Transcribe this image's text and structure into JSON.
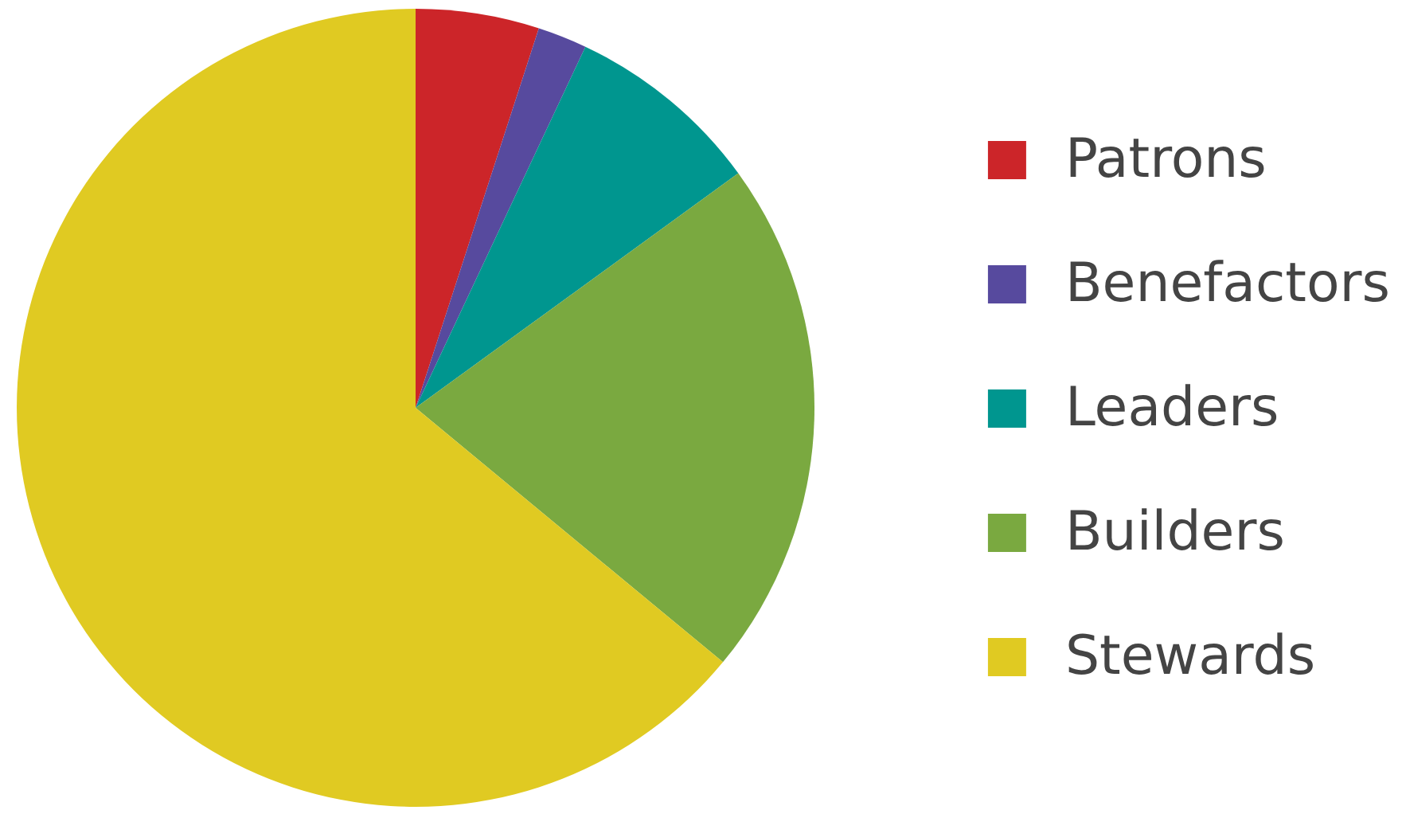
{
  "chart_data": {
    "type": "pie",
    "categories": [
      "Patrons",
      "Benefactors",
      "Leaders",
      "Builders",
      "Stewards"
    ],
    "values": [
      5,
      2,
      8,
      21,
      64
    ],
    "colors": [
      "#cc2529",
      "#574a9e",
      "#00968f",
      "#7aa940",
      "#e0ca22"
    ],
    "legend": "right"
  }
}
